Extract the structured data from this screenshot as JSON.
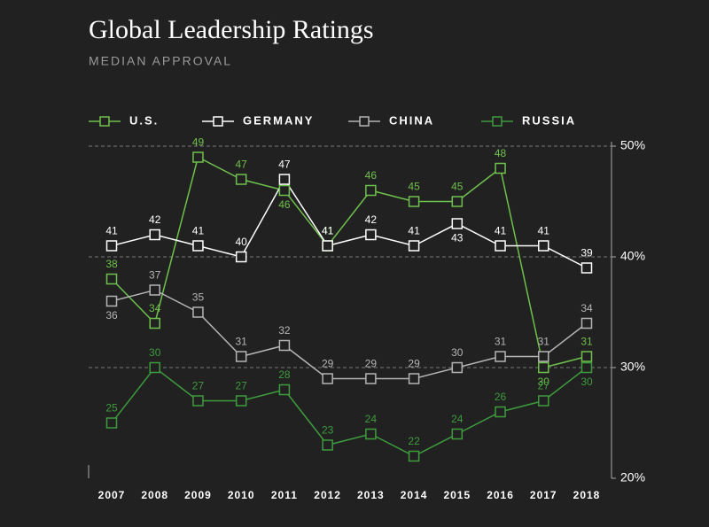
{
  "chart_data": {
    "type": "line",
    "title": "Global Leadership Ratings",
    "subtitle": "MEDIAN APPROVAL",
    "categories": [
      "2007",
      "2008",
      "2009",
      "2010",
      "2011",
      "2012",
      "2013",
      "2014",
      "2015",
      "2016",
      "2017",
      "2018"
    ],
    "series": [
      {
        "name": "U.S.",
        "color": "#6fc04c",
        "values": [
          38,
          34,
          49,
          47,
          46,
          41,
          46,
          45,
          45,
          48,
          30,
          31
        ]
      },
      {
        "name": "GERMANY",
        "color": "#ffffff",
        "values": [
          41,
          42,
          41,
          40,
          47,
          41,
          42,
          41,
          43,
          41,
          41,
          39
        ]
      },
      {
        "name": "CHINA",
        "color": "#b4b4b4",
        "values": [
          36,
          37,
          35,
          31,
          32,
          29,
          29,
          29,
          30,
          31,
          31,
          34
        ]
      },
      {
        "name": "RUSSIA",
        "color": "#3e9b3e",
        "values": [
          25,
          30,
          27,
          27,
          28,
          23,
          24,
          22,
          24,
          26,
          27,
          30
        ]
      }
    ],
    "ylim": [
      20,
      50
    ],
    "yticks": [
      {
        "value": 20,
        "label": "20%"
      },
      {
        "value": 30,
        "label": "30%"
      },
      {
        "value": 40,
        "label": "40%"
      },
      {
        "value": 50,
        "label": "50%"
      }
    ],
    "grid": true,
    "legend": "top"
  }
}
